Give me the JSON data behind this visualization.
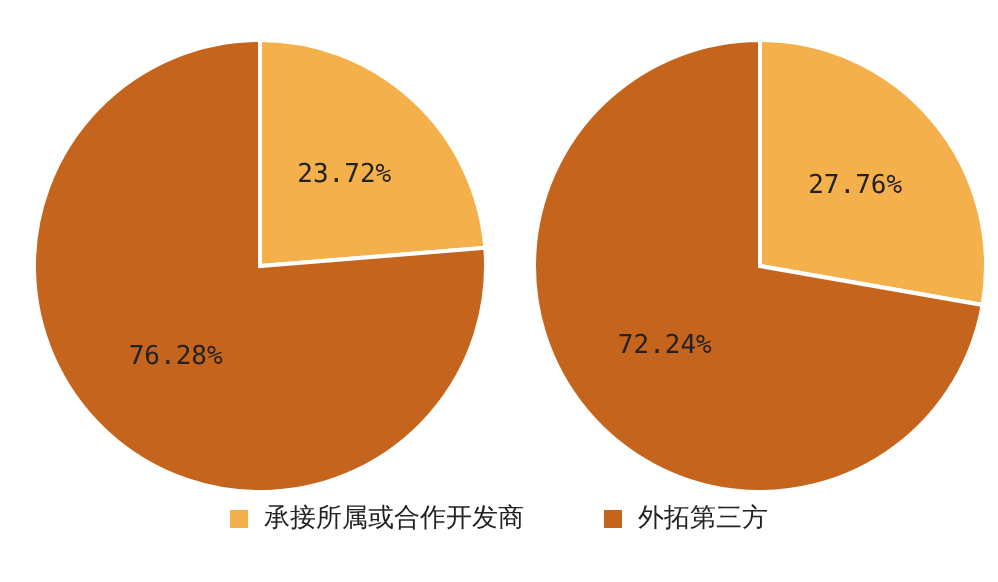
{
  "chart_data": [
    {
      "type": "pie",
      "categories": [
        "承接所属或合作开发商",
        "外拓第三方"
      ],
      "values": [
        23.72,
        76.28
      ],
      "value_labels": [
        "23.72%",
        "76.28%"
      ],
      "colors": [
        "#f4b04a",
        "#c5641c"
      ],
      "legend": "bottom"
    },
    {
      "type": "pie",
      "categories": [
        null,
        null
      ],
      "values": [
        27.76,
        72.24
      ],
      "value_labels": [
        "27.76%",
        "72.24%"
      ],
      "colors": [
        "#f4b04a",
        "#c5641c"
      ]
    }
  ]
}
